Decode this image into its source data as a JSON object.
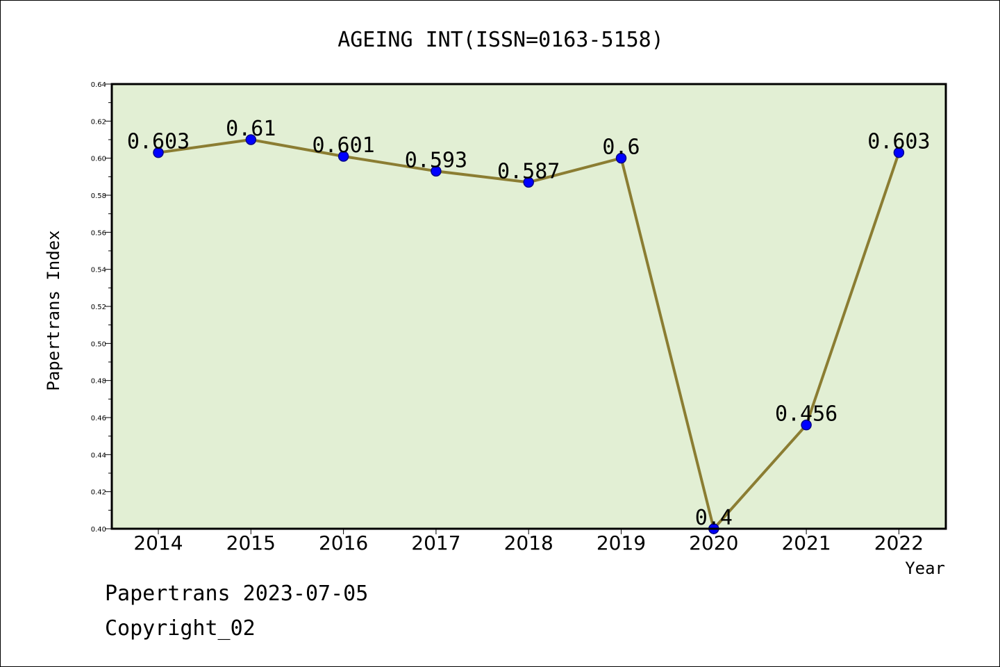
{
  "chart_data": {
    "type": "line",
    "title": "AGEING INT(ISSN=0163-5158)",
    "xlabel": "Year",
    "ylabel": "Papertrans Index",
    "categories": [
      "2014",
      "2015",
      "2016",
      "2017",
      "2018",
      "2019",
      "2020",
      "2021",
      "2022"
    ],
    "series": [
      {
        "values": [
          0.603,
          0.61,
          0.601,
          0.593,
          0.587,
          0.6,
          0.4,
          0.456,
          0.603
        ],
        "labels": [
          "0.603",
          "0.61",
          "0.601",
          "0.593",
          "0.587",
          "0.6",
          "0.4",
          "0.456",
          "0.603"
        ]
      }
    ],
    "ylim": [
      0.4,
      0.64
    ],
    "yticks": [
      "0.40",
      "0.42",
      "0.44",
      "0.46",
      "0.48",
      "0.50",
      "0.52",
      "0.54",
      "0.56",
      "0.58",
      "0.60",
      "0.62",
      "0.64"
    ],
    "grid": false,
    "legend": "none",
    "colors": {
      "plot_background": "#e2efd4",
      "line": "#8b7d32",
      "marker_fill": "#0000ff",
      "marker_edge": "#00008b",
      "frame": "#000000"
    }
  },
  "footer": {
    "date_line": "Papertrans 2023-07-05",
    "copyright_line": "Copyright_02"
  }
}
